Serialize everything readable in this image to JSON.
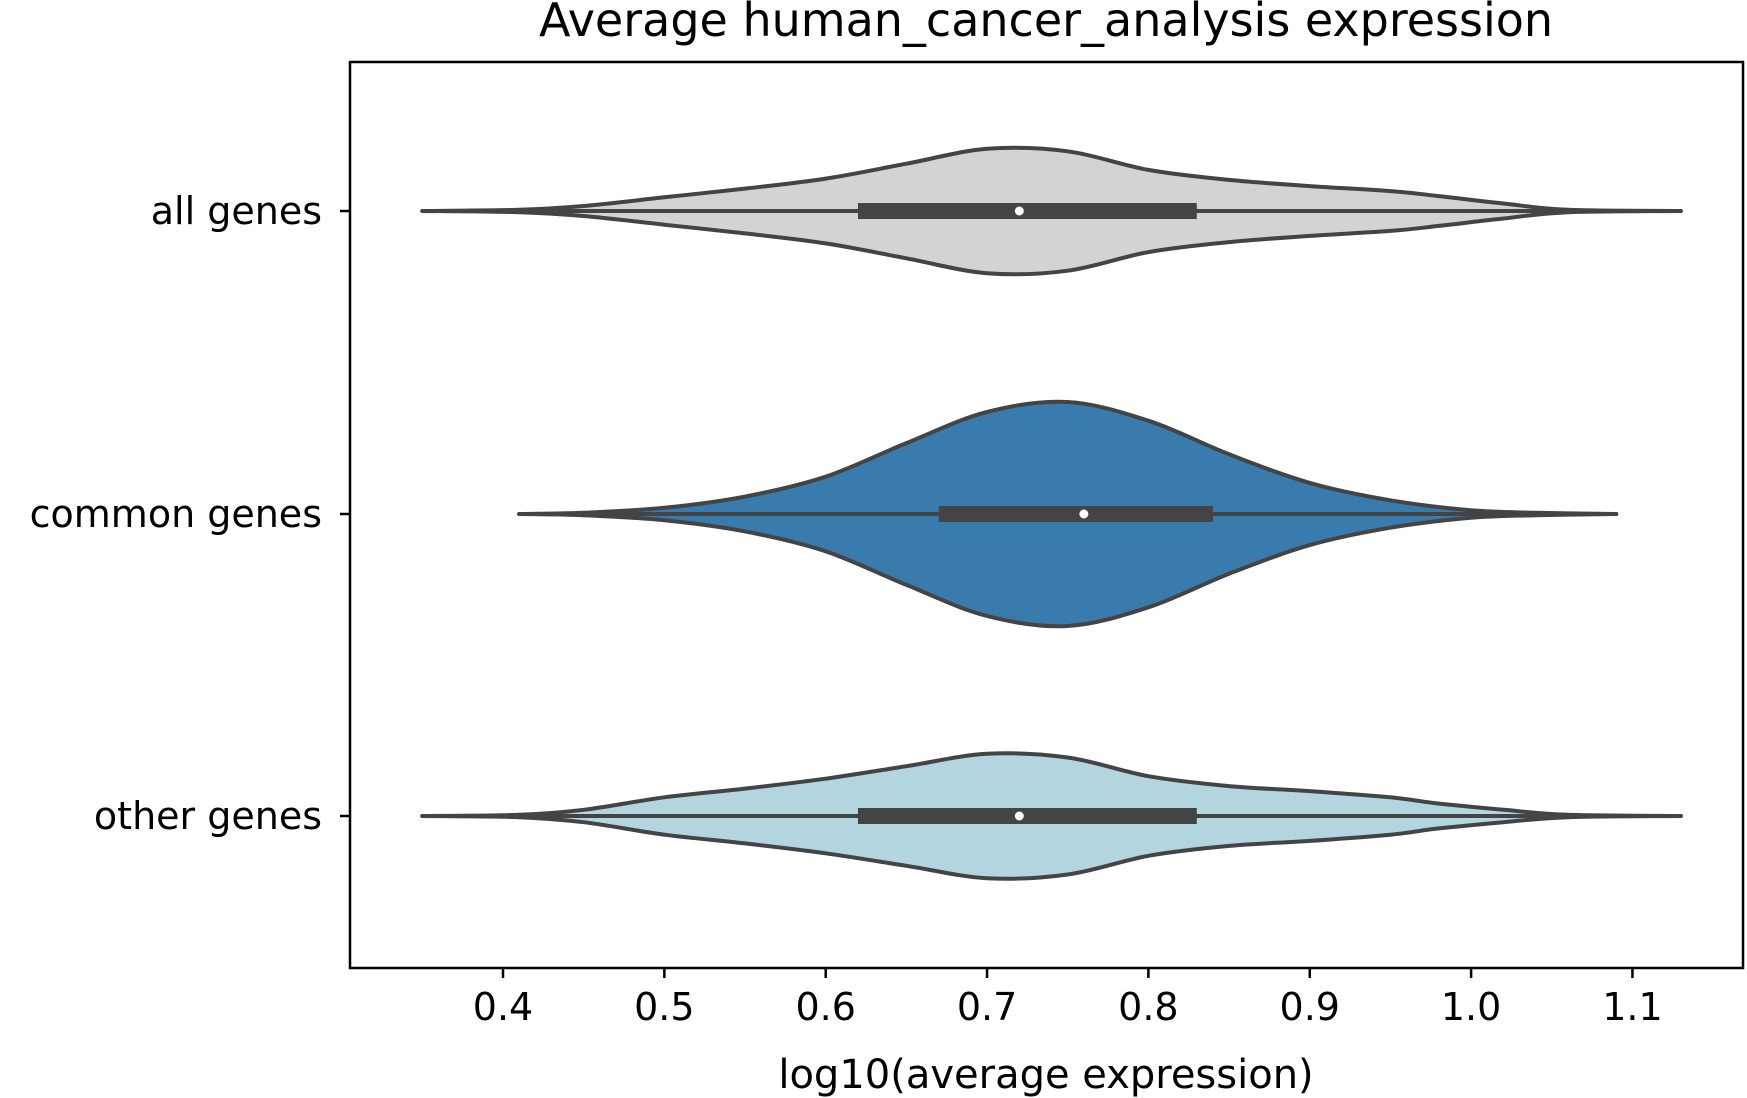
{
  "chart_data": {
    "type": "violin",
    "orientation": "horizontal",
    "title": "Average human_cancer_analysis expression",
    "xlabel": "log10(average expression)",
    "ylabel": "",
    "xlim": [
      0.31,
      1.15
    ],
    "xticks": [
      "0.4",
      "0.5",
      "0.6",
      "0.7",
      "0.8",
      "0.9",
      "1.0",
      "1.1"
    ],
    "grid": false,
    "outline_color": "#444444",
    "series": [
      {
        "name": "all genes",
        "color": "#d3d3d3",
        "min": 0.35,
        "q1": 0.62,
        "median": 0.72,
        "q3": 0.83,
        "max": 1.13,
        "density_x": [
          0.35,
          0.41,
          0.45,
          0.5,
          0.55,
          0.6,
          0.65,
          0.7,
          0.75,
          0.8,
          0.85,
          0.9,
          0.95,
          0.98,
          1.02,
          1.06,
          1.13
        ],
        "density_w": [
          0.0,
          0.01,
          0.04,
          0.11,
          0.18,
          0.26,
          0.38,
          0.5,
          0.48,
          0.33,
          0.25,
          0.2,
          0.16,
          0.12,
          0.06,
          0.01,
          0.0
        ]
      },
      {
        "name": "common genes",
        "color": "#3a7bad",
        "min": 0.41,
        "q1": 0.67,
        "median": 0.76,
        "q3": 0.84,
        "max": 1.09,
        "density_x": [
          0.41,
          0.45,
          0.5,
          0.55,
          0.6,
          0.65,
          0.7,
          0.75,
          0.8,
          0.85,
          0.9,
          0.95,
          1.0,
          1.04,
          1.09
        ],
        "density_w": [
          0.0,
          0.01,
          0.05,
          0.14,
          0.3,
          0.57,
          0.82,
          0.9,
          0.75,
          0.48,
          0.25,
          0.11,
          0.03,
          0.01,
          0.0
        ]
      },
      {
        "name": "other genes",
        "color": "#b3d5e0",
        "min": 0.35,
        "q1": 0.62,
        "median": 0.72,
        "q3": 0.83,
        "max": 1.13,
        "density_x": [
          0.35,
          0.41,
          0.45,
          0.5,
          0.55,
          0.6,
          0.65,
          0.7,
          0.75,
          0.8,
          0.85,
          0.9,
          0.95,
          0.98,
          1.02,
          1.06,
          1.13
        ],
        "density_w": [
          0.0,
          0.01,
          0.05,
          0.15,
          0.22,
          0.3,
          0.4,
          0.5,
          0.47,
          0.32,
          0.24,
          0.2,
          0.15,
          0.1,
          0.05,
          0.01,
          0.0
        ]
      }
    ]
  }
}
